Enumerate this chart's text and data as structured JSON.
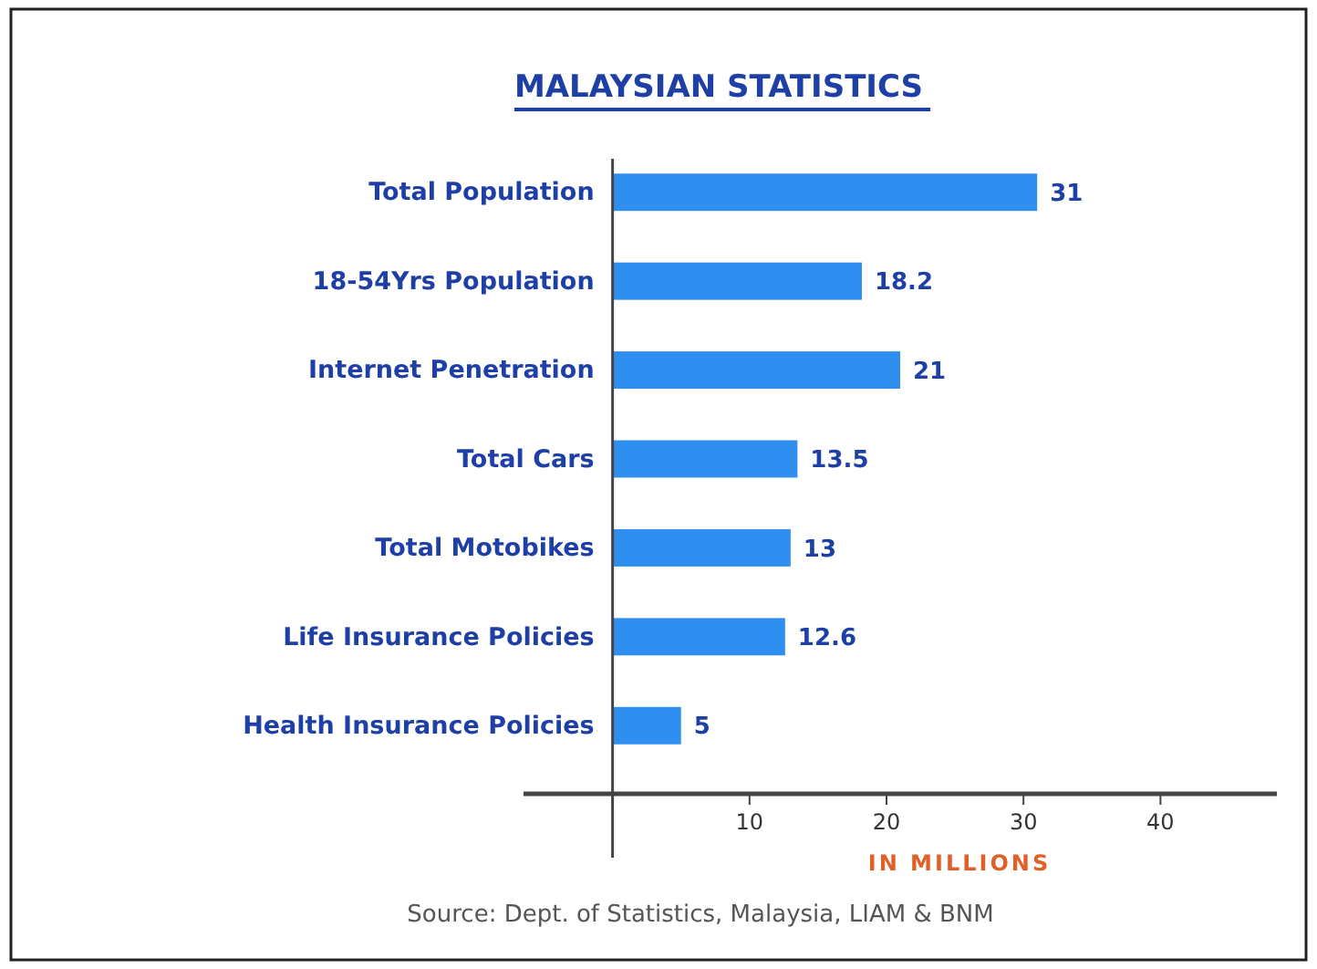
{
  "chart_data": {
    "type": "bar",
    "orientation": "horizontal",
    "title": "MALAYSIAN STATISTICS",
    "categories": [
      "Total Population",
      "18-54Yrs Population",
      "Internet Penetration",
      "Total Cars",
      "Total Motobikes",
      "Life Insurance Policies",
      "Health Insurance Policies"
    ],
    "values": [
      31,
      18.2,
      21,
      13.5,
      13,
      12.6,
      5
    ],
    "color": "#2e8ff0",
    "xlim": [
      -6.5,
      48.5
    ],
    "xticks": [
      {
        "value": 0,
        "label": null
      },
      10,
      20,
      30,
      40
    ],
    "xlabel": "IN MILLIONS",
    "data_labels": true,
    "annotations": [
      "Source: Dept. of Statistics, Malaysia, LIAM & BNM"
    ]
  }
}
